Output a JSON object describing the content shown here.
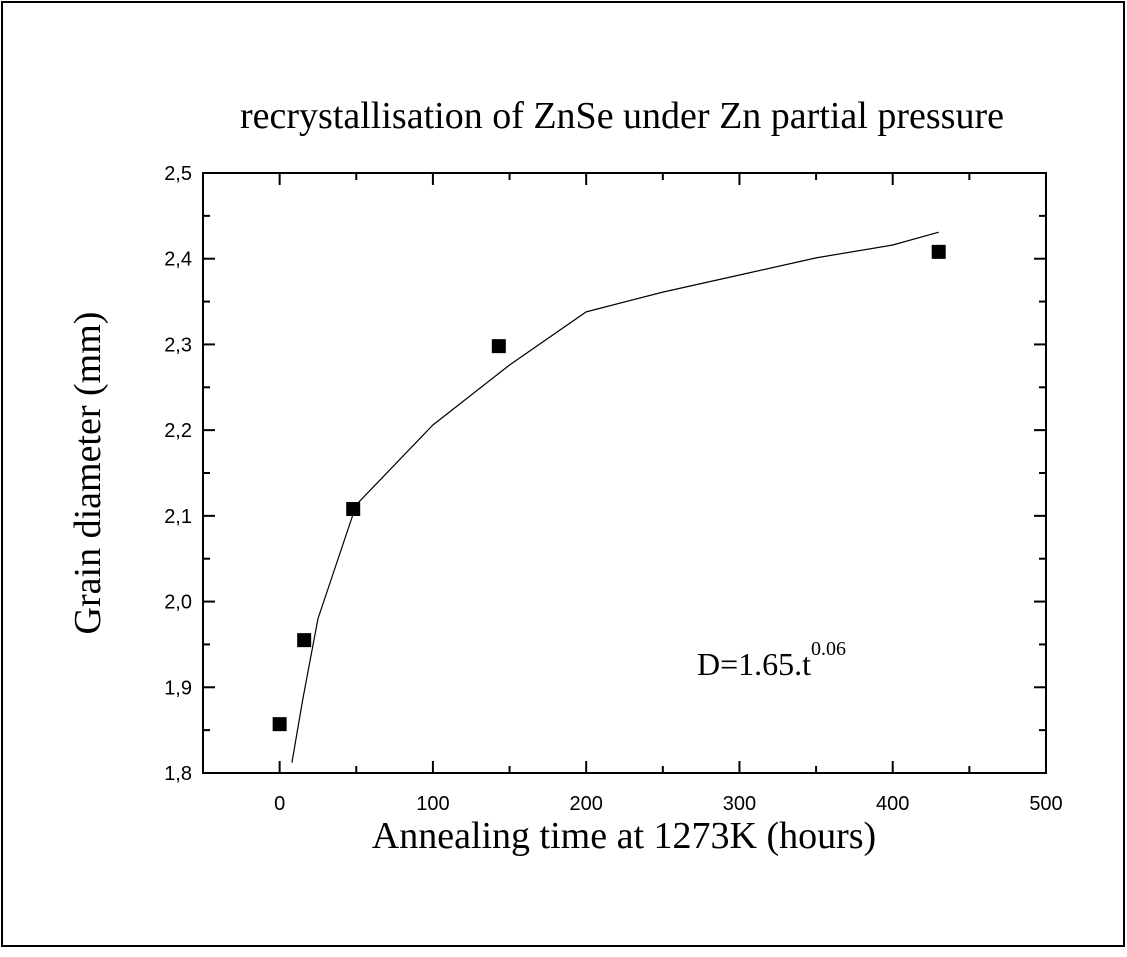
{
  "chart_data": {
    "type": "scatter",
    "title": "recrystallisation of ZnSe under Zn partial pressure",
    "x_label": "Annealing time at 1273K (hours)",
    "y_label": "Grain diameter (mm)",
    "annotation": {
      "base": "D=1.65.t",
      "sup": "0.06"
    },
    "xlim": [
      -50,
      500
    ],
    "ylim": [
      1.8,
      2.5
    ],
    "xticks": [
      0,
      100,
      200,
      300,
      400,
      500
    ],
    "xticks_minor": [
      50,
      150,
      250,
      350,
      450
    ],
    "yticks": [
      {
        "value": 1.8,
        "label": "1,8"
      },
      {
        "value": 1.9,
        "label": "1,9"
      },
      {
        "value": 2.0,
        "label": "2,0"
      },
      {
        "value": 2.1,
        "label": "2,1"
      },
      {
        "value": 2.2,
        "label": "2,2"
      },
      {
        "value": 2.3,
        "label": "2,3"
      },
      {
        "value": 2.4,
        "label": "2,4"
      },
      {
        "value": 2.5,
        "label": "2,5"
      }
    ],
    "yticks_minor": [
      1.85,
      1.95,
      2.05,
      2.15,
      2.25,
      2.35,
      2.45
    ],
    "series": [
      {
        "kind": "points",
        "color": "#000000",
        "x": [
          0,
          16,
          48,
          143,
          430
        ],
        "values": [
          1.857,
          1.955,
          2.108,
          2.298,
          2.408
        ]
      },
      {
        "kind": "line",
        "color": "#000000",
        "x": [
          8,
          15,
          25,
          50,
          100,
          150,
          200,
          250,
          300,
          350,
          400,
          430
        ],
        "values": [
          1.812,
          1.885,
          1.98,
          2.113,
          2.206,
          2.276,
          2.338,
          2.361,
          2.381,
          2.401,
          2.416,
          2.431
        ]
      }
    ]
  }
}
